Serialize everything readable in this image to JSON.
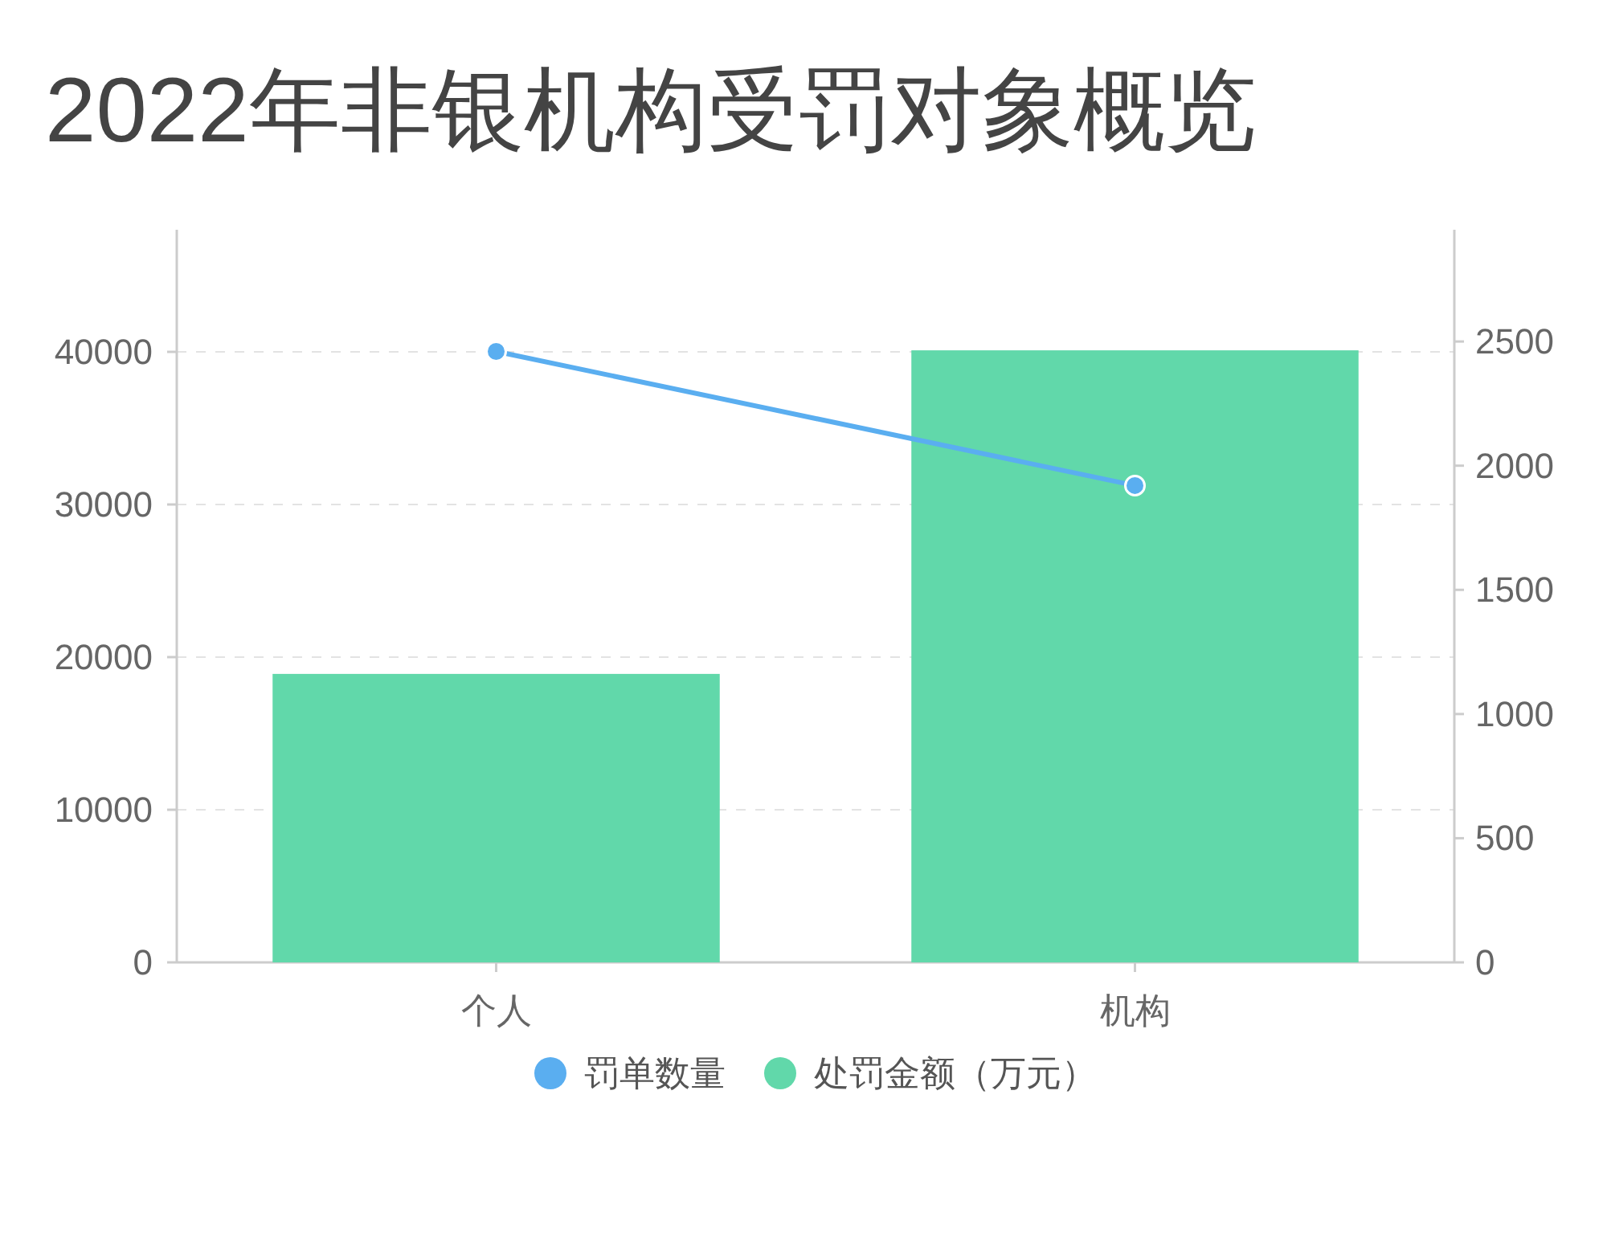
{
  "chart_data": {
    "type": "bar",
    "title": "2022年非银机构受罚对象概览",
    "categories": [
      "个人",
      "机构"
    ],
    "series": [
      {
        "name": "罚单数量",
        "type": "line",
        "axis": "y2",
        "color": "#5aaef0",
        "values": [
          2460,
          1920
        ]
      },
      {
        "name": "处罚金额（万元）",
        "type": "bar",
        "color": "#61d8aa",
        "values": [
          18900,
          40100
        ]
      }
    ],
    "ylim": [
      0,
      48000
    ],
    "yticks": [
      0,
      10000,
      20000,
      30000,
      40000
    ],
    "y2lim": [
      0,
      2950
    ],
    "y2ticks": [
      0,
      500,
      1000,
      1500,
      2000,
      2500
    ],
    "grid": "y",
    "legend": "bottom",
    "marker": "circle"
  }
}
